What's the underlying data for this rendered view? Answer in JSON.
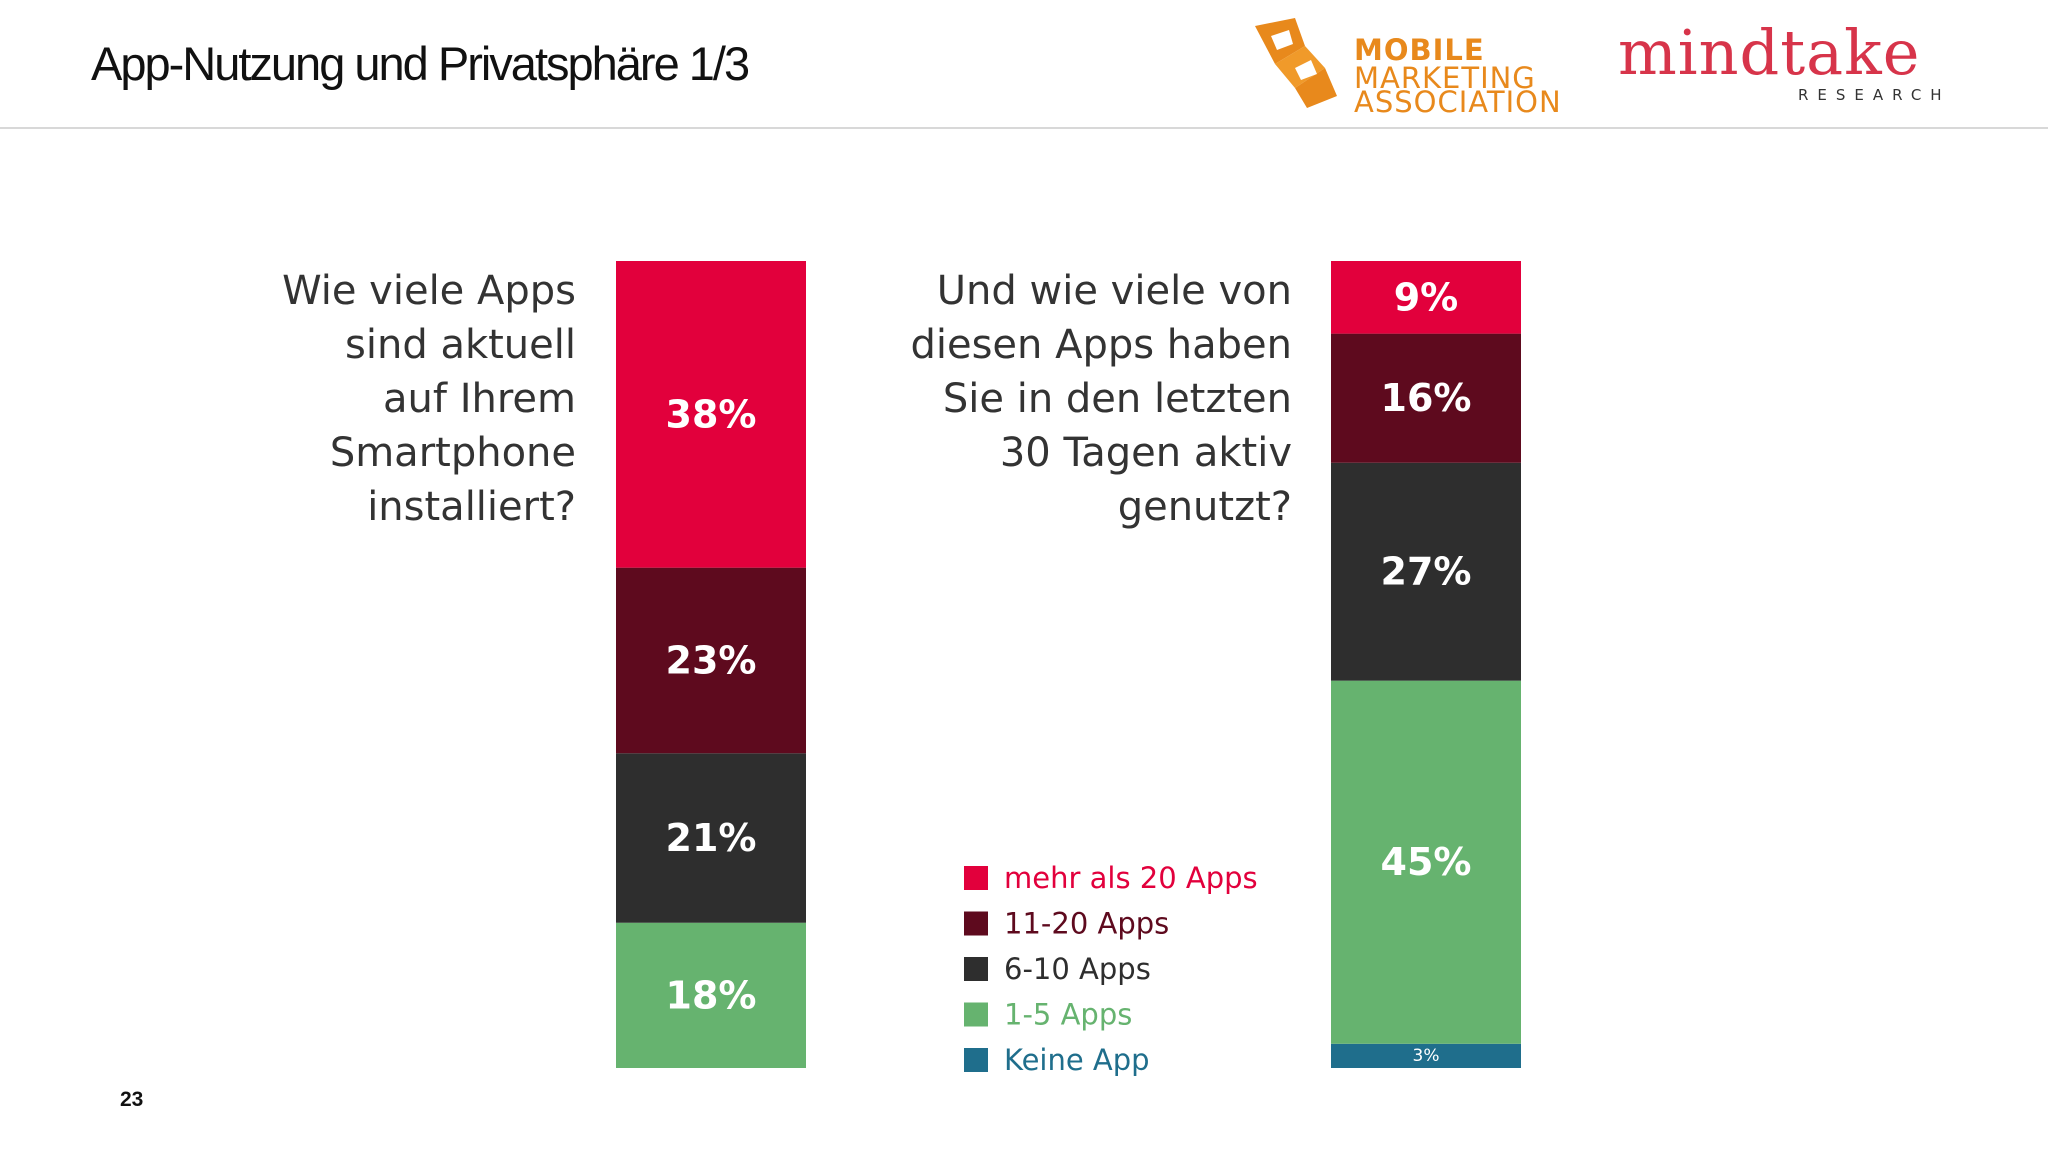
{
  "header": {
    "title": "App-Nutzung und Privatsphäre 1/3",
    "logo_mma": [
      "MOBILE",
      "MARKETING",
      "ASSOCIATION"
    ],
    "logo_mindtake": "mindtake",
    "logo_research": "RESEARCH"
  },
  "page_number": "23",
  "chart_data": {
    "type": "bar",
    "stacked": true,
    "categories": [
      "Wie viele Apps\nsind aktuell\nauf Ihrem\nSmartphone\ninstalliert?",
      "Und wie viele von\ndiesen Apps haben\nSie in den letzten\n30 Tagen aktiv\ngenutzt?"
    ],
    "series": [
      {
        "name": "mehr als 20 Apps",
        "color": "#e2003c",
        "values": [
          38,
          9
        ],
        "value_labels": [
          "38%",
          "9%"
        ]
      },
      {
        "name": "11-20 Apps",
        "color": "#5e0a1e",
        "values": [
          23,
          16
        ],
        "value_labels": [
          "23%",
          "16%"
        ]
      },
      {
        "name": "6-10 Apps",
        "color": "#2e2e2e",
        "values": [
          21,
          27
        ],
        "value_labels": [
          "21%",
          "27%"
        ]
      },
      {
        "name": "1-5 Apps",
        "color": "#66b36f",
        "values": [
          18,
          45
        ],
        "value_labels": [
          "18%",
          "45%"
        ]
      },
      {
        "name": "Keine App",
        "color": "#1f6e8c",
        "values": [
          null,
          3
        ],
        "value_labels": [
          null,
          "3%"
        ]
      }
    ]
  }
}
